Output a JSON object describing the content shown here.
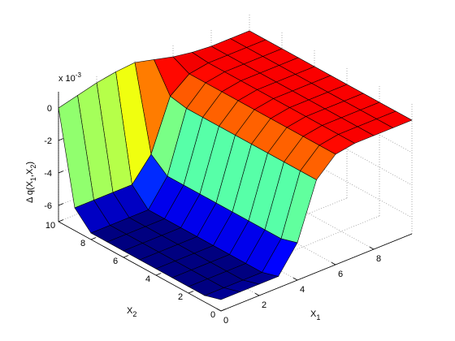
{
  "chart_data": {
    "type": "surface",
    "x": [
      0,
      1,
      2,
      3,
      4,
      5,
      6,
      7,
      8,
      9,
      10
    ],
    "y": [
      0,
      1,
      2,
      3,
      4,
      5,
      6,
      7,
      8,
      9,
      10
    ],
    "z": [
      [
        -6.3,
        -6.3,
        -6.3,
        -6.3,
        -4.7,
        -1.3,
        -0.2,
        0,
        0,
        0,
        0
      ],
      [
        -6.6,
        -6.6,
        -6.6,
        -6.6,
        -5.0,
        -1.3,
        -0.2,
        0,
        0,
        0,
        0
      ],
      [
        -6.6,
        -6.6,
        -6.6,
        -6.6,
        -5.0,
        -1.3,
        -0.2,
        0,
        0,
        0,
        0
      ],
      [
        -6.6,
        -6.6,
        -6.6,
        -6.6,
        -5.0,
        -1.3,
        -0.2,
        0,
        0,
        0,
        0
      ],
      [
        -6.6,
        -6.6,
        -6.6,
        -6.6,
        -5.0,
        -1.3,
        -0.2,
        0,
        0,
        0,
        0
      ],
      [
        -6.6,
        -6.6,
        -6.6,
        -6.6,
        -5.0,
        -1.3,
        -0.2,
        0,
        0,
        0,
        0
      ],
      [
        -6.6,
        -6.6,
        -6.6,
        -6.6,
        -5.0,
        -1.3,
        -0.2,
        0,
        0,
        0,
        0
      ],
      [
        -6.6,
        -6.6,
        -6.6,
        -6.6,
        -5.0,
        -1.3,
        -0.2,
        0,
        0,
        0,
        0
      ],
      [
        -6.6,
        -6.6,
        -6.6,
        -6.6,
        -5.0,
        -1.3,
        -0.2,
        0,
        0,
        0,
        0
      ],
      [
        -5.6,
        -5.6,
        -5.6,
        -5.6,
        -4.2,
        -1.1,
        -0.2,
        0,
        0,
        0,
        0
      ],
      [
        0,
        0.3,
        0.6,
        0.8,
        0.9,
        0.6,
        0.3,
        0.1,
        0,
        0,
        0
      ]
    ],
    "xlim": [
      0,
      10
    ],
    "ylim": [
      0,
      10
    ],
    "zlim": [
      -7,
      1
    ],
    "xticks": [
      0,
      2,
      4,
      6,
      8
    ],
    "yticks": [
      0,
      2,
      4,
      6,
      8,
      10
    ],
    "zticks": [
      -6,
      -4,
      -2,
      0
    ],
    "xlabel": {
      "text": "X",
      "sub": "1"
    },
    "ylabel": {
      "text": "X",
      "sub": "2"
    },
    "zlabel": {
      "parts": [
        {
          "text": "Δ q(X"
        },
        {
          "sub": "1"
        },
        {
          "text": ",X"
        },
        {
          "sub": "2"
        },
        {
          "text": ")"
        }
      ]
    },
    "exponent": {
      "text": "x 10",
      "sup": "-3"
    },
    "colormap": "jet",
    "grid": true,
    "edge_color": "#000000"
  }
}
